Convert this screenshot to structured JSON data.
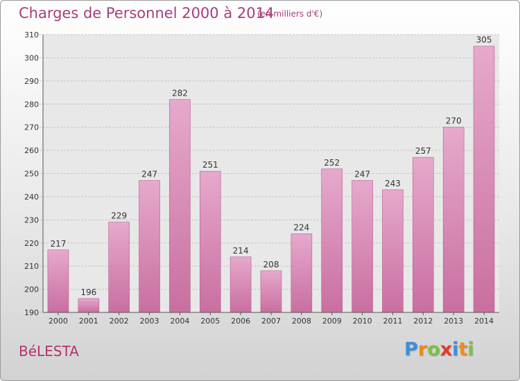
{
  "header": {
    "title": "Charges de Personnel 2000 à 2014",
    "subtitle": "(en milliers d'€)"
  },
  "footer": {
    "commune": "BéLESTA",
    "logo_letters": [
      {
        "char": "P",
        "color": "#3b8fd9"
      },
      {
        "char": "r",
        "color": "#f08a1c"
      },
      {
        "char": "o",
        "color": "#7cc242"
      },
      {
        "char": "x",
        "color": "#e53935"
      },
      {
        "char": "i",
        "color": "#3b8fd9"
      },
      {
        "char": "t",
        "color": "#f08a1c"
      },
      {
        "char": "i",
        "color": "#7cc242"
      }
    ]
  },
  "chart_data": {
    "type": "bar",
    "title": "Charges de Personnel 2000 à 2014",
    "subtitle": "(en milliers d'€)",
    "categories": [
      "2000",
      "2001",
      "2002",
      "2003",
      "2004",
      "2005",
      "2006",
      "2007",
      "2008",
      "2009",
      "2010",
      "2011",
      "2012",
      "2013",
      "2014"
    ],
    "values": [
      217,
      196,
      229,
      247,
      282,
      251,
      214,
      208,
      224,
      252,
      247,
      243,
      257,
      270,
      305
    ],
    "ylim": [
      190,
      310
    ],
    "yticks": [
      190,
      200,
      210,
      220,
      230,
      240,
      250,
      260,
      270,
      280,
      290,
      300,
      310
    ],
    "grid": true,
    "bar_color": "#c96fa0",
    "bar_color_light": "#e6a9cc",
    "label_color": "#333333"
  }
}
